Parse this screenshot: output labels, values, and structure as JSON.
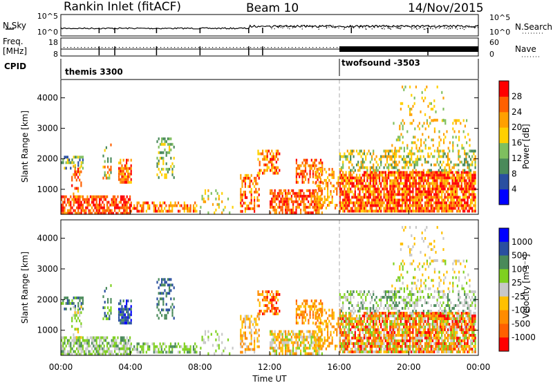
{
  "header": {
    "station": "Rankin Inlet (fitACF)",
    "beam": "Beam 10",
    "date": "14/Nov/2015"
  },
  "strip_labels": {
    "nsky": "N.Sky",
    "nsky_ticks": [
      "10^5",
      "10^0"
    ],
    "nsearch": "N.Search",
    "nsearch_ticks": [
      "10^5",
      "10^0"
    ],
    "freq": "Freq.",
    "freq_unit": "[MHz]",
    "freq_ticks": [
      "18",
      "8"
    ],
    "nave": "Nave",
    "nave_ticks": [
      "60",
      "0"
    ],
    "cpid": "CPID",
    "cpid_segments": [
      "themis 3300",
      "twofsound -3503"
    ]
  },
  "colors": {
    "power": [
      "#0000ff",
      "#2a4fa0",
      "#4a8a5a",
      "#7fbf5f",
      "#ffd000",
      "#ffa000",
      "#ff6000",
      "#ff0000"
    ],
    "velocity": [
      "#0000ff",
      "#2a4fa0",
      "#4a8a5a",
      "#7fd020",
      "#c8c8c8",
      "#ffc000",
      "#ff8c00",
      "#ff6000",
      "#ff0000"
    ]
  },
  "chart_data": [
    {
      "type": "heatmap",
      "title": "Power",
      "ylabel": "Slant Range [km]",
      "yticks": [
        "1000",
        "2000",
        "3000",
        "4000"
      ],
      "colorbar_label": "Power [dB]",
      "colorbar_ticks": [
        "4",
        "8",
        "12",
        "16",
        "20",
        "24",
        "28"
      ],
      "colorbar_range": [
        0,
        32
      ],
      "ylim": [
        180,
        4600
      ],
      "xlim": [
        0,
        24
      ]
    },
    {
      "type": "heatmap",
      "title": "Velocity",
      "ylabel": "Slant Range [km]",
      "yticks": [
        "1000",
        "2000",
        "3000",
        "4000"
      ],
      "colorbar_label": "Velocity [m s⁻¹]",
      "colorbar_ticks": [
        "1000",
        "500",
        "100",
        "25",
        "-25",
        "-100",
        "-500",
        "-1000"
      ],
      "ylim": [
        180,
        4600
      ],
      "xlim": [
        0,
        24
      ]
    }
  ],
  "xaxis": {
    "ticks": [
      "00:00",
      "04:00",
      "08:00",
      "12:00",
      "16:00",
      "20:00",
      "00:00"
    ],
    "label": "Time UT"
  }
}
